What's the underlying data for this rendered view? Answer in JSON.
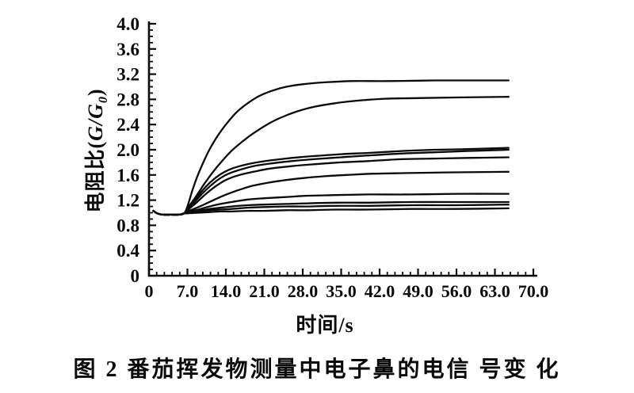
{
  "figure": {
    "caption": "图 2  番茄挥发物测量中电子鼻的电信 号变 化"
  },
  "chart_data": {
    "type": "line",
    "title": "",
    "xlabel": "时间/s",
    "ylabel": "电阻比(G/G₀)",
    "ylabel_parts": {
      "prefix": "电阻比(",
      "var": "G/G",
      "sub": "0",
      "suffix": ")"
    },
    "xlim": [
      0,
      70
    ],
    "ylim": [
      0,
      4.0
    ],
    "x_major_ticks": [
      0,
      7,
      14,
      21,
      28,
      35,
      42,
      49,
      56,
      63,
      70
    ],
    "x_tick_labels": [
      "0",
      "7.0",
      "14.0",
      "21.0",
      "28.0",
      "35.0",
      "42.0",
      "49.0",
      "56.0",
      "63.0",
      "70.0"
    ],
    "x_minor_step": 1.4,
    "y_major_ticks": [
      0,
      0.4,
      0.8,
      1.2,
      1.6,
      2.0,
      2.4,
      2.8,
      3.2,
      3.6,
      4.0
    ],
    "y_tick_labels": [
      "0",
      "0.4",
      "0.8",
      "1.2",
      "1.6",
      "2.0",
      "2.4",
      "2.8",
      "3.2",
      "3.6",
      "4.0"
    ],
    "y_minor_step": 0.1,
    "grid": false,
    "legend": "none",
    "axis_color": "#0a0a0a",
    "line_color": "#0a0a0a",
    "series": [
      {
        "points": [
          [
            0.8,
            1.03
          ],
          [
            1.5,
            0.99
          ],
          [
            2.5,
            0.97
          ],
          [
            4,
            0.97
          ],
          [
            5.5,
            0.97
          ],
          [
            6.4,
            0.99
          ],
          [
            7,
            1.1
          ],
          [
            8,
            1.38
          ],
          [
            9,
            1.62
          ],
          [
            10,
            1.82
          ],
          [
            11,
            2.0
          ],
          [
            12.5,
            2.22
          ],
          [
            14,
            2.4
          ],
          [
            16,
            2.6
          ],
          [
            18,
            2.74
          ],
          [
            20,
            2.85
          ],
          [
            22.5,
            2.94
          ],
          [
            25,
            3.0
          ],
          [
            28,
            3.04
          ],
          [
            32,
            3.07
          ],
          [
            37,
            3.09
          ],
          [
            44,
            3.09
          ],
          [
            52,
            3.1
          ],
          [
            59,
            3.1
          ],
          [
            65.5,
            3.1
          ]
        ]
      },
      {
        "points": [
          [
            0.8,
            1.03
          ],
          [
            1.5,
            0.99
          ],
          [
            2.5,
            0.97
          ],
          [
            4,
            0.97
          ],
          [
            5.5,
            0.97
          ],
          [
            6.4,
            0.99
          ],
          [
            7,
            1.07
          ],
          [
            8.5,
            1.25
          ],
          [
            10,
            1.45
          ],
          [
            11.5,
            1.63
          ],
          [
            13,
            1.79
          ],
          [
            15,
            1.98
          ],
          [
            17,
            2.13
          ],
          [
            19,
            2.26
          ],
          [
            21.5,
            2.4
          ],
          [
            24,
            2.51
          ],
          [
            27,
            2.61
          ],
          [
            30,
            2.68
          ],
          [
            34,
            2.74
          ],
          [
            38,
            2.78
          ],
          [
            43,
            2.81
          ],
          [
            49,
            2.82
          ],
          [
            56,
            2.83
          ],
          [
            65.5,
            2.84
          ]
        ]
      },
      {
        "points": [
          [
            0.8,
            1.03
          ],
          [
            1.5,
            0.99
          ],
          [
            2.5,
            0.97
          ],
          [
            4,
            0.97
          ],
          [
            5.5,
            0.97
          ],
          [
            6.4,
            0.99
          ],
          [
            7,
            1.06
          ],
          [
            8.5,
            1.22
          ],
          [
            10,
            1.38
          ],
          [
            11.5,
            1.51
          ],
          [
            13,
            1.61
          ],
          [
            14.5,
            1.68
          ],
          [
            16.5,
            1.74
          ],
          [
            19,
            1.79
          ],
          [
            22,
            1.83
          ],
          [
            26,
            1.87
          ],
          [
            30,
            1.9
          ],
          [
            35,
            1.93
          ],
          [
            40,
            1.95
          ],
          [
            46,
            1.98
          ],
          [
            52,
            2.0
          ],
          [
            58,
            2.01
          ],
          [
            65.5,
            2.03
          ]
        ]
      },
      {
        "points": [
          [
            0.8,
            1.03
          ],
          [
            1.5,
            0.99
          ],
          [
            2.5,
            0.97
          ],
          [
            4,
            0.97
          ],
          [
            5.5,
            0.97
          ],
          [
            6.4,
            0.99
          ],
          [
            7,
            1.05
          ],
          [
            8.5,
            1.19
          ],
          [
            10,
            1.33
          ],
          [
            11.5,
            1.45
          ],
          [
            13,
            1.55
          ],
          [
            14.5,
            1.62
          ],
          [
            16.5,
            1.68
          ],
          [
            19,
            1.74
          ],
          [
            22,
            1.78
          ],
          [
            26,
            1.82
          ],
          [
            30,
            1.85
          ],
          [
            35,
            1.88
          ],
          [
            40,
            1.91
          ],
          [
            46,
            1.94
          ],
          [
            52,
            1.96
          ],
          [
            58,
            1.98
          ],
          [
            65.5,
            2.0
          ]
        ]
      },
      {
        "points": [
          [
            0.8,
            1.03
          ],
          [
            1.5,
            0.99
          ],
          [
            2.5,
            0.97
          ],
          [
            4,
            0.97
          ],
          [
            5.5,
            0.97
          ],
          [
            6.4,
            0.99
          ],
          [
            7,
            1.04
          ],
          [
            8.5,
            1.15
          ],
          [
            10,
            1.27
          ],
          [
            11.5,
            1.38
          ],
          [
            13,
            1.47
          ],
          [
            14.5,
            1.54
          ],
          [
            16.5,
            1.6
          ],
          [
            19,
            1.65
          ],
          [
            22,
            1.7
          ],
          [
            26,
            1.74
          ],
          [
            30,
            1.77
          ],
          [
            35,
            1.8
          ],
          [
            40,
            1.82
          ],
          [
            46,
            1.85
          ],
          [
            52,
            1.86
          ],
          [
            58,
            1.87
          ],
          [
            65.5,
            1.88
          ]
        ]
      },
      {
        "points": [
          [
            0.8,
            1.03
          ],
          [
            1.5,
            0.99
          ],
          [
            2.5,
            0.97
          ],
          [
            4,
            0.97
          ],
          [
            5.5,
            0.97
          ],
          [
            6.4,
            0.99
          ],
          [
            7,
            1.02
          ],
          [
            9,
            1.09
          ],
          [
            11,
            1.17
          ],
          [
            13,
            1.25
          ],
          [
            15,
            1.32
          ],
          [
            17,
            1.38
          ],
          [
            19,
            1.43
          ],
          [
            22,
            1.48
          ],
          [
            25,
            1.52
          ],
          [
            28,
            1.55
          ],
          [
            32,
            1.58
          ],
          [
            36,
            1.6
          ],
          [
            41,
            1.62
          ],
          [
            47,
            1.63
          ],
          [
            54,
            1.64
          ],
          [
            65.5,
            1.65
          ]
        ]
      },
      {
        "points": [
          [
            0.8,
            1.03
          ],
          [
            1.5,
            0.99
          ],
          [
            2.5,
            0.97
          ],
          [
            4,
            0.97
          ],
          [
            5.5,
            0.97
          ],
          [
            6.4,
            0.99
          ],
          [
            7,
            1.01
          ],
          [
            9,
            1.05
          ],
          [
            11,
            1.1
          ],
          [
            13,
            1.14
          ],
          [
            15,
            1.17
          ],
          [
            18,
            1.21
          ],
          [
            21,
            1.23
          ],
          [
            25,
            1.25
          ],
          [
            29,
            1.27
          ],
          [
            34,
            1.28
          ],
          [
            40,
            1.29
          ],
          [
            48,
            1.29
          ],
          [
            56,
            1.3
          ],
          [
            65.5,
            1.3
          ]
        ]
      },
      {
        "points": [
          [
            0.8,
            1.03
          ],
          [
            1.5,
            0.99
          ],
          [
            2.5,
            0.97
          ],
          [
            4,
            0.97
          ],
          [
            5.5,
            0.97
          ],
          [
            6.4,
            0.99
          ],
          [
            7,
            1.0
          ],
          [
            9,
            1.03
          ],
          [
            11,
            1.06
          ],
          [
            13,
            1.08
          ],
          [
            15,
            1.1
          ],
          [
            18,
            1.12
          ],
          [
            21,
            1.13
          ],
          [
            25,
            1.14
          ],
          [
            29,
            1.15
          ],
          [
            34,
            1.16
          ],
          [
            40,
            1.16
          ],
          [
            48,
            1.17
          ],
          [
            56,
            1.17
          ],
          [
            65.5,
            1.17
          ]
        ]
      },
      {
        "points": [
          [
            0.8,
            1.03
          ],
          [
            1.5,
            0.99
          ],
          [
            2.5,
            0.97
          ],
          [
            4,
            0.97
          ],
          [
            5.5,
            0.97
          ],
          [
            6.4,
            0.99
          ],
          [
            7,
            1.0
          ],
          [
            9,
            1.02
          ],
          [
            11,
            1.04
          ],
          [
            13,
            1.05
          ],
          [
            15,
            1.06
          ],
          [
            18,
            1.08
          ],
          [
            21,
            1.09
          ],
          [
            25,
            1.1
          ],
          [
            29,
            1.1
          ],
          [
            34,
            1.11
          ],
          [
            40,
            1.11
          ],
          [
            48,
            1.12
          ],
          [
            56,
            1.12
          ],
          [
            65.5,
            1.13
          ]
        ]
      },
      {
        "points": [
          [
            0.8,
            1.03
          ],
          [
            1.5,
            0.99
          ],
          [
            2.5,
            0.97
          ],
          [
            4,
            0.97
          ],
          [
            5.5,
            0.97
          ],
          [
            6.4,
            0.99
          ],
          [
            7,
            0.99
          ],
          [
            9,
            1.0
          ],
          [
            11,
            1.01
          ],
          [
            13,
            1.02
          ],
          [
            15,
            1.02
          ],
          [
            18,
            1.03
          ],
          [
            21,
            1.03
          ],
          [
            25,
            1.04
          ],
          [
            29,
            1.04
          ],
          [
            34,
            1.05
          ],
          [
            40,
            1.05
          ],
          [
            48,
            1.06
          ],
          [
            56,
            1.06
          ],
          [
            65.5,
            1.07
          ]
        ]
      }
    ]
  }
}
